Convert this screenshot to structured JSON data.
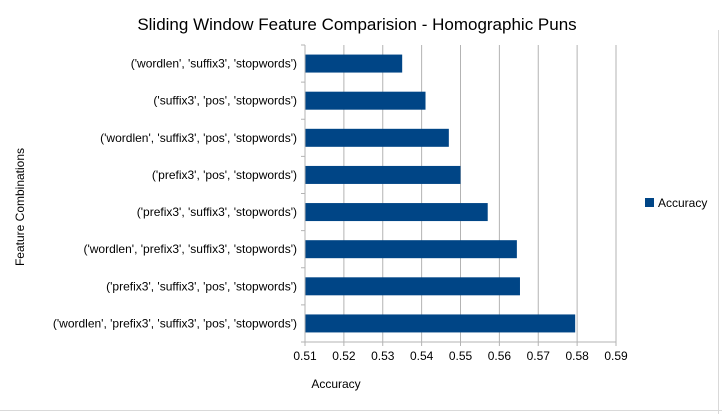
{
  "chart_data": {
    "type": "bar",
    "orientation": "horizontal",
    "title": "Sliding Window Feature Comparision - Homographic Puns",
    "xlabel": "Accuracy",
    "ylabel": "Feature Combinations",
    "xlim": [
      0.51,
      0.59
    ],
    "xticks": [
      "0.51",
      "0.52",
      "0.53",
      "0.54",
      "0.55",
      "0.56",
      "0.57",
      "0.58",
      "0.59"
    ],
    "grid": true,
    "legend_position": "right",
    "categories": [
      "('wordlen', 'suffix3', 'stopwords')",
      "('suffix3', 'pos', 'stopwords')",
      "('wordlen', 'suffix3', 'pos', 'stopwords')",
      "('prefix3', 'pos', 'stopwords')",
      "('prefix3', 'suffix3', 'stopwords')",
      "('wordlen', 'prefix3', 'suffix3', 'stopwords')",
      "('prefix3', 'suffix3', 'pos', 'stopwords')",
      "('wordlen', 'prefix3', 'suffix3', 'pos', 'stopwords')"
    ],
    "series": [
      {
        "name": "Accuracy",
        "color": "#004586",
        "values": [
          0.535,
          0.541,
          0.547,
          0.55,
          0.557,
          0.5645,
          0.5653,
          0.5795
        ]
      }
    ]
  },
  "colors": {
    "bar": "#004586",
    "grid": "#b3b3b3",
    "axis": "#b3b3b3"
  }
}
